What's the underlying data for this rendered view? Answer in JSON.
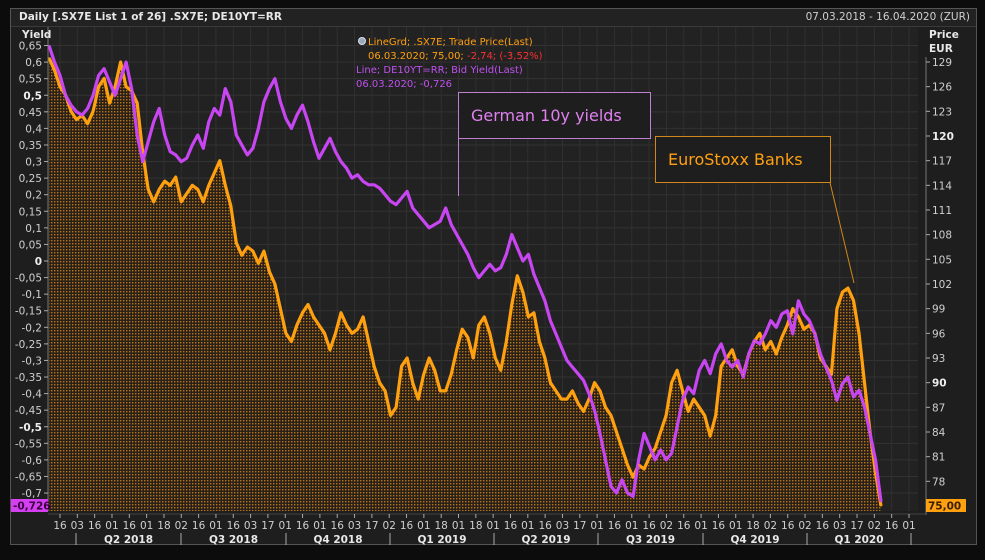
{
  "header": {
    "title": "Daily [.SX7E List 1 of 26] .SX7E; DE10YT=RR",
    "date_range": "07.03.2018 - 16.04.2020 (ZUR)"
  },
  "legend": {
    "series1_line1": "LineGrd; .SX7E; Trade Price(Last)",
    "series1_line2_a": "06.03.2020; 75,00; ",
    "series1_line2_b": "-2,74; (-3,52%)",
    "series2_line1": "Line; DE10YT=RR; Bid Yield(Last)",
    "series2_line2": "06.03.2020; -0,726"
  },
  "annotations": {
    "yields": "German 10y yields",
    "banks": "EuroStoxx Banks"
  },
  "colors": {
    "yield": "#c040f0",
    "price": "#ffa010",
    "negative": "#ff3030",
    "background": "#1e1e1e",
    "grid": "#333333"
  },
  "axes": {
    "left_unit": "Yield",
    "right_unit_1": "Price",
    "right_unit_2": "EUR",
    "left_last_value": "-0,726",
    "right_last_value": "75,00"
  },
  "chart_data": {
    "type": "line",
    "title": "Daily [.SX7E List 1 of 26] .SX7E; DE10YT=RR",
    "left_axis": {
      "label": "Yield",
      "ylim": [
        -0.73,
        0.67
      ],
      "ticks": [
        "0,65",
        "0,6",
        "0,55",
        "0,5",
        "0,45",
        "0,4",
        "0,35",
        "0,3",
        "0,25",
        "0,2",
        "0,15",
        "0,1",
        "0,05",
        "0",
        "-0,05",
        "-0,1",
        "-0,15",
        "-0,2",
        "-0,25",
        "-0,3",
        "-0,35",
        "-0,4",
        "-0,45",
        "-0,5",
        "-0,55",
        "-0,6",
        "-0,65",
        "-0,7"
      ],
      "tick_values": [
        0.65,
        0.6,
        0.55,
        0.5,
        0.45,
        0.4,
        0.35,
        0.3,
        0.25,
        0.2,
        0.15,
        0.1,
        0.05,
        0,
        -0.05,
        -0.1,
        -0.15,
        -0.2,
        -0.25,
        -0.3,
        -0.35,
        -0.4,
        -0.45,
        -0.5,
        -0.55,
        -0.6,
        -0.65,
        -0.7
      ],
      "bold_ticks": [
        "0,5",
        "0",
        "-0,5"
      ]
    },
    "right_axis": {
      "label": "Price EUR",
      "ylim": [
        74.4,
        131
      ],
      "ticks": [
        "129",
        "126",
        "123",
        "120",
        "117",
        "114",
        "111",
        "108",
        "105",
        "102",
        "99",
        "96",
        "93",
        "90",
        "87",
        "84",
        "81",
        "78"
      ],
      "tick_values": [
        129,
        126,
        123,
        120,
        117,
        114,
        111,
        108,
        105,
        102,
        99,
        96,
        93,
        90,
        87,
        84,
        81,
        78
      ],
      "bold_ticks": [
        "120",
        "90"
      ]
    },
    "x_ticks": [
      "16",
      "03",
      "16",
      "01",
      "16",
      "01",
      "18",
      "02",
      "16",
      "01",
      "16",
      "03",
      "17",
      "01",
      "16",
      "01",
      "16",
      "03",
      "17",
      "02",
      "16",
      "01",
      "18",
      "01",
      "18",
      "01",
      "16",
      "01",
      "16",
      "03",
      "17",
      "01",
      "16",
      "01",
      "16",
      "02",
      "16",
      "01",
      "16",
      "01",
      "18",
      "02",
      "16",
      "02",
      "16",
      "03",
      "17",
      "02",
      "16",
      "01"
    ],
    "quarters": [
      "Q2 2018",
      "Q3 2018",
      "Q4 2018",
      "Q1 2019",
      "Q2 2019",
      "Q3 2019",
      "Q4 2019",
      "Q1 2020"
    ],
    "x_range": [
      "07.03.2018",
      "16.04.2020"
    ],
    "grid": true,
    "legend_position": "top-center",
    "series": [
      {
        "name": "DE10YT=RR Bid Yield(Last)",
        "axis": "left",
        "style": "line",
        "values": [
          0.65,
          0.6,
          0.56,
          0.5,
          0.47,
          0.45,
          0.44,
          0.46,
          0.5,
          0.56,
          0.58,
          0.54,
          0.5,
          0.55,
          0.6,
          0.52,
          0.38,
          0.3,
          0.36,
          0.42,
          0.46,
          0.38,
          0.33,
          0.32,
          0.3,
          0.31,
          0.35,
          0.38,
          0.34,
          0.42,
          0.46,
          0.44,
          0.52,
          0.48,
          0.38,
          0.35,
          0.32,
          0.34,
          0.4,
          0.48,
          0.52,
          0.55,
          0.48,
          0.43,
          0.4,
          0.44,
          0.47,
          0.42,
          0.36,
          0.31,
          0.34,
          0.37,
          0.33,
          0.3,
          0.28,
          0.25,
          0.26,
          0.24,
          0.23,
          0.23,
          0.22,
          0.2,
          0.18,
          0.17,
          0.19,
          0.21,
          0.16,
          0.14,
          0.12,
          0.1,
          0.11,
          0.12,
          0.16,
          0.11,
          0.08,
          0.05,
          0.02,
          -0.02,
          -0.05,
          -0.03,
          -0.01,
          -0.03,
          -0.02,
          0.02,
          0.08,
          0.04,
          0.0,
          0.02,
          -0.04,
          -0.08,
          -0.12,
          -0.18,
          -0.22,
          -0.26,
          -0.3,
          -0.32,
          -0.34,
          -0.36,
          -0.4,
          -0.45,
          -0.52,
          -0.6,
          -0.68,
          -0.7,
          -0.66,
          -0.7,
          -0.71,
          -0.6,
          -0.52,
          -0.56,
          -0.6,
          -0.57,
          -0.6,
          -0.58,
          -0.5,
          -0.42,
          -0.38,
          -0.4,
          -0.33,
          -0.3,
          -0.34,
          -0.28,
          -0.25,
          -0.3,
          -0.32,
          -0.3,
          -0.35,
          -0.28,
          -0.24,
          -0.25,
          -0.22,
          -0.18,
          -0.2,
          -0.16,
          -0.15,
          -0.22,
          -0.12,
          -0.16,
          -0.18,
          -0.22,
          -0.28,
          -0.32,
          -0.36,
          -0.42,
          -0.37,
          -0.35,
          -0.41,
          -0.39,
          -0.44,
          -0.52,
          -0.6,
          -0.726
        ]
      },
      {
        "name": ".SX7E Trade Price(Last)",
        "axis": "right",
        "style": "area",
        "values": [
          129.5,
          128,
          126,
          125,
          123,
          122,
          122.5,
          121.5,
          123,
          126,
          127,
          124,
          126,
          129,
          126,
          125.5,
          124,
          118,
          113.5,
          112,
          113.5,
          114.5,
          114,
          115,
          112,
          113,
          114,
          113.5,
          112,
          114,
          115.5,
          117,
          114,
          111.5,
          107,
          105.5,
          106.5,
          106,
          104.5,
          106,
          103.5,
          102,
          99,
          96,
          95,
          97,
          98.5,
          99.5,
          98,
          97,
          96,
          94,
          96,
          98.5,
          97,
          96,
          96.5,
          98,
          95,
          92,
          90,
          89,
          86,
          87,
          92,
          93,
          90,
          88,
          91,
          93,
          91.5,
          89,
          89,
          91,
          94,
          96.5,
          95.5,
          93,
          97,
          98,
          96,
          93,
          91.5,
          95,
          99.5,
          103,
          101,
          98,
          98.5,
          95,
          93,
          90,
          89,
          88,
          88,
          89,
          87.5,
          86.5,
          88,
          90,
          89,
          87,
          86,
          84,
          82,
          80,
          78.5,
          80,
          79.5,
          81,
          82,
          84,
          86,
          90,
          91.5,
          89,
          86.5,
          88,
          87,
          86,
          83.5,
          86,
          92,
          93,
          94,
          92,
          91,
          93.5,
          95,
          96,
          94,
          95,
          93.5,
          95.5,
          97,
          99,
          98,
          96.5,
          97,
          96,
          93,
          92,
          91,
          99,
          101,
          101.5,
          100,
          96,
          90,
          84,
          79,
          75
        ]
      }
    ]
  }
}
